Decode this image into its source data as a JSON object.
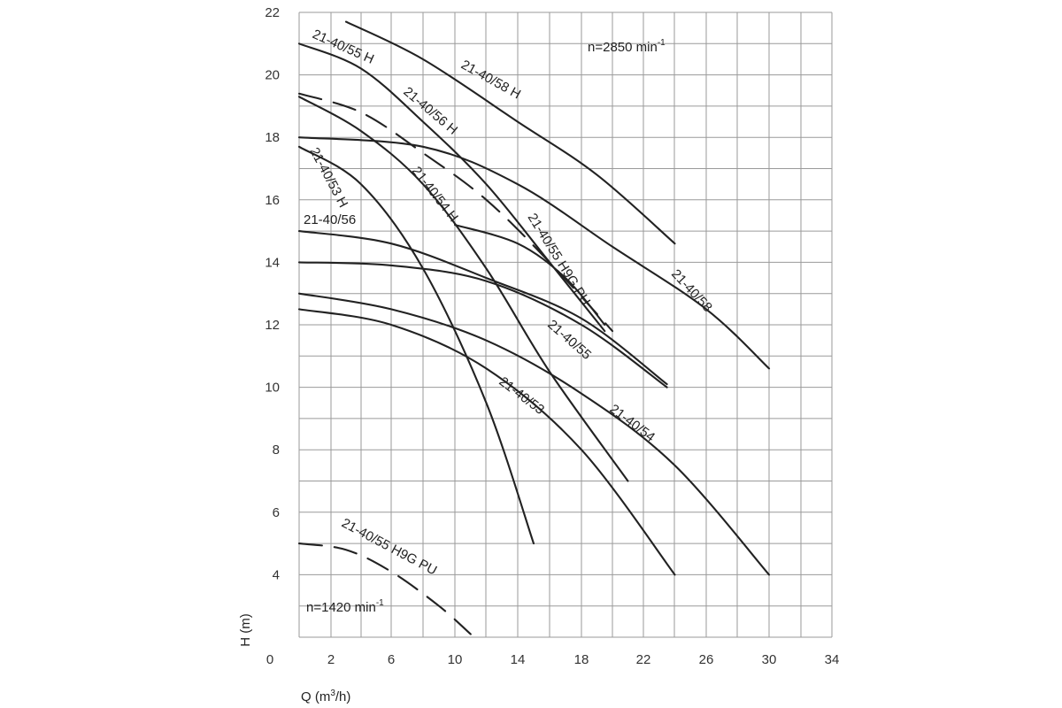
{
  "chart_data": {
    "type": "line",
    "title": "",
    "xlabel": "Q (m³/h)",
    "ylabel": "H (m)",
    "xlim": [
      0,
      34
    ],
    "ylim": [
      2,
      22
    ],
    "xticks": [
      0,
      2,
      6,
      10,
      14,
      18,
      22,
      26,
      30,
      34
    ],
    "yticks": [
      4,
      6,
      8,
      10,
      12,
      14,
      16,
      18,
      20,
      22
    ],
    "grid": true,
    "annotations": [
      {
        "base": "n=2850 min",
        "sup": "-1"
      },
      {
        "base": "n=1420 min",
        "sup": "-1"
      }
    ],
    "series": [
      {
        "name": "21-40/58 H",
        "style": "solid",
        "x": [
          3,
          8,
          14,
          19,
          24
        ],
        "y": [
          21.7,
          20.5,
          18.5,
          16.8,
          14.6
        ]
      },
      {
        "name": "21-40/55 H",
        "style": "solid",
        "x": [
          1,
          4,
          8,
          12,
          16,
          19.5
        ],
        "y": [
          21.0,
          20.2,
          18.5,
          16.5,
          14.0,
          11.8
        ]
      },
      {
        "name": "21-40/56 H",
        "style": "dashed",
        "x": [
          1,
          4,
          8,
          12,
          16,
          20
        ],
        "y": [
          19.4,
          18.8,
          17.5,
          16.0,
          14.0,
          11.8
        ]
      },
      {
        "name": "21-40/54 H",
        "style": "solid",
        "x": [
          1,
          4,
          8,
          12,
          16,
          21
        ],
        "y": [
          19.3,
          18.2,
          16.5,
          13.8,
          10.5,
          7.0
        ]
      },
      {
        "name": "21-40/53 H",
        "style": "solid",
        "x": [
          1,
          4,
          8,
          12,
          15
        ],
        "y": [
          17.7,
          16.5,
          13.8,
          9.5,
          5.0
        ]
      },
      {
        "name": "21-40/58",
        "style": "solid",
        "x": [
          1,
          8,
          14,
          20,
          26,
          30
        ],
        "y": [
          18.0,
          17.7,
          16.5,
          14.5,
          12.5,
          10.6
        ]
      },
      {
        "name": "21-40/56",
        "style": "solid",
        "x": [
          1,
          6,
          12,
          18,
          23.5
        ],
        "y": [
          15.0,
          14.6,
          13.5,
          12.2,
          10.1
        ]
      },
      {
        "name": "21-40/55 H9G PU",
        "style": "solid",
        "x": [
          10,
          14,
          17,
          19.5
        ],
        "y": [
          15.2,
          14.6,
          13.5,
          12.0
        ]
      },
      {
        "name": "21-40/55",
        "style": "solid",
        "x": [
          1,
          6,
          12,
          18,
          23.5
        ],
        "y": [
          14.0,
          13.9,
          13.4,
          12.0,
          10.0
        ]
      },
      {
        "name": "21-40/54",
        "style": "solid",
        "x": [
          1,
          6,
          12,
          18,
          24,
          30
        ],
        "y": [
          13.0,
          12.5,
          11.5,
          9.8,
          7.5,
          4.0
        ]
      },
      {
        "name": "21-40/53",
        "style": "solid",
        "x": [
          1,
          6,
          12,
          18,
          24
        ],
        "y": [
          12.5,
          12.0,
          10.6,
          8.0,
          4.0
        ]
      },
      {
        "name": "21-40/55 H9G PU",
        "style": "dashed",
        "x": [
          1,
          3,
          6,
          9,
          11
        ],
        "y": [
          5.0,
          4.8,
          4.1,
          3.0,
          2.1
        ]
      }
    ]
  }
}
